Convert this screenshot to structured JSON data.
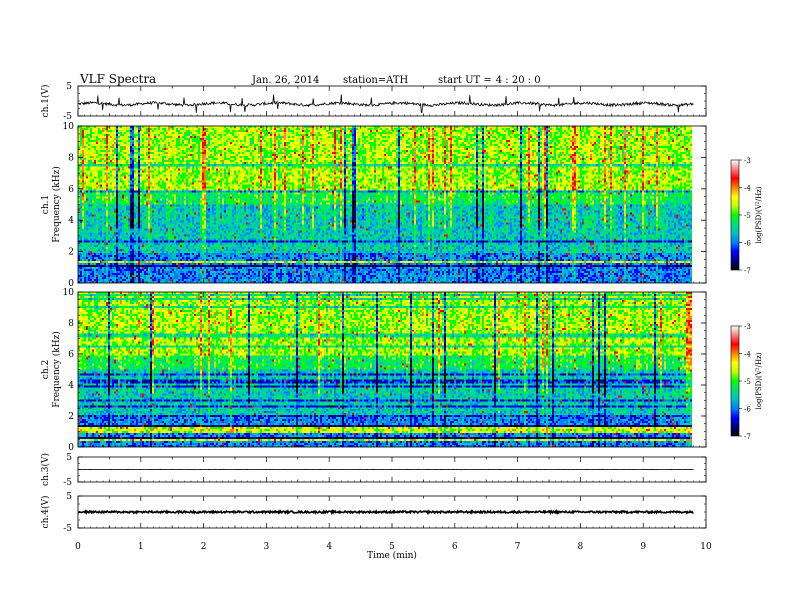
{
  "header": {
    "title": "VLF  Spectra",
    "date": "Jan. 26, 2014",
    "station": "station=ATH",
    "start_label": "start  UT  =",
    "start_time": "4  : 20 : 0"
  },
  "chart_data": [
    {
      "id": "ch1-waveform",
      "type": "line",
      "ylabel": "ch.1(V)",
      "ylim": [
        -5,
        5
      ],
      "yticks": [
        "5",
        "-5"
      ],
      "baseline": -1,
      "x_range_min": [
        0,
        9.8
      ],
      "description_values": "noisy waveform around -1 V with spikes",
      "color": "#000000"
    },
    {
      "id": "ch1-spectrogram",
      "type": "heatmap",
      "ylabel": "ch.1\nFrequency  (kHz)",
      "ylim": [
        0,
        10
      ],
      "yticks": [
        "0",
        "2",
        "4",
        "6",
        "8",
        "10"
      ],
      "x_range_min": [
        0,
        9.8
      ],
      "colorbar": {
        "label": "log(PSD)(V²/Hz)",
        "range": [
          -7,
          -3
        ],
        "ticks": [
          "-3",
          "-4",
          "-5",
          "-6",
          "-7"
        ]
      }
    },
    {
      "id": "ch2-spectrogram",
      "type": "heatmap",
      "ylabel": "ch.2\nFrequency  (kHz)",
      "ylim": [
        0,
        10
      ],
      "yticks": [
        "0",
        "2",
        "4",
        "6",
        "8",
        "10"
      ],
      "x_range_min": [
        0,
        9.8
      ],
      "colorbar": {
        "label": "log(PSD)(V²/Hz)",
        "range": [
          -7,
          -3
        ],
        "ticks": [
          "-3",
          "-4",
          "-5",
          "-6",
          "-7"
        ]
      }
    },
    {
      "id": "ch3-waveform",
      "type": "line",
      "ylabel": "ch.3(V)",
      "ylim": [
        -5,
        5
      ],
      "yticks": [
        "5",
        "-5"
      ],
      "baseline": 0,
      "x_range_min": [
        0,
        9.8
      ],
      "color": "#000000"
    },
    {
      "id": "ch4-waveform",
      "type": "line",
      "ylabel": "ch.4(V)",
      "ylim": [
        -5,
        5
      ],
      "yticks": [
        "5",
        "-5"
      ],
      "baseline": 0,
      "x_range_min": [
        0,
        9.8
      ],
      "color": "#000000"
    }
  ],
  "x_axis": {
    "xlabel": "Time  (min)",
    "xlim": [
      0,
      10
    ],
    "ticks": [
      "0",
      "1",
      "2",
      "3",
      "4",
      "5",
      "6",
      "7",
      "8",
      "9",
      "10"
    ]
  },
  "colormap": [
    "#000000",
    "#000080",
    "#0000ff",
    "#0080ff",
    "#00c0c0",
    "#00e080",
    "#00ff00",
    "#c0ff00",
    "#ffff00",
    "#ff8000",
    "#ff0000",
    "#ff8080",
    "#ffffff"
  ]
}
